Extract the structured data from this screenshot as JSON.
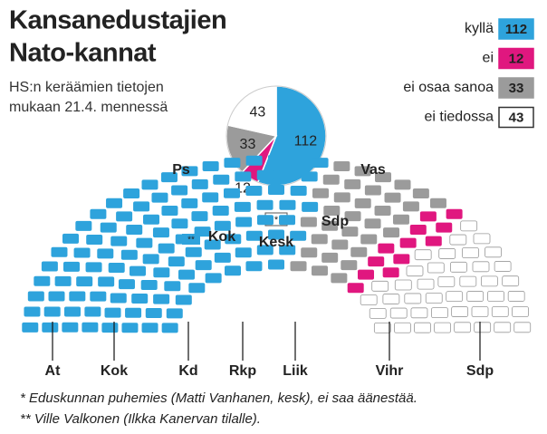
{
  "header": {
    "title_lines": [
      "Kansanedustajien",
      "Nato-kannat"
    ],
    "subtitle_lines": [
      "HS:n keräämien tietojen",
      "mukaan 21.4. mennessä"
    ]
  },
  "chart_data": {
    "type": "pie",
    "categories": [
      "kyllä",
      "ei",
      "ei osaa sanoa",
      "ei tiedossa"
    ],
    "values": [
      112,
      12,
      33,
      43
    ],
    "colors": [
      "#2ea3dc",
      "#e0177f",
      "#9b9b9b",
      "#ffffff"
    ]
  },
  "party_labels": {
    "top": [
      "Ps",
      "Kok",
      "Kesk",
      "Vas",
      "Sdp"
    ],
    "bottom": [
      "At",
      "Kok",
      "Kd",
      "Rkp",
      "Liik",
      "Vihr",
      "Sdp"
    ]
  },
  "markers": [
    "*",
    "**"
  ],
  "footnotes": [
    "* Eduskunnan puhemies (Matti Vanhanen, kesk), ei saa äänestää.",
    "** Ville Valkonen (Ilkka Kanervan tilalle)."
  ]
}
